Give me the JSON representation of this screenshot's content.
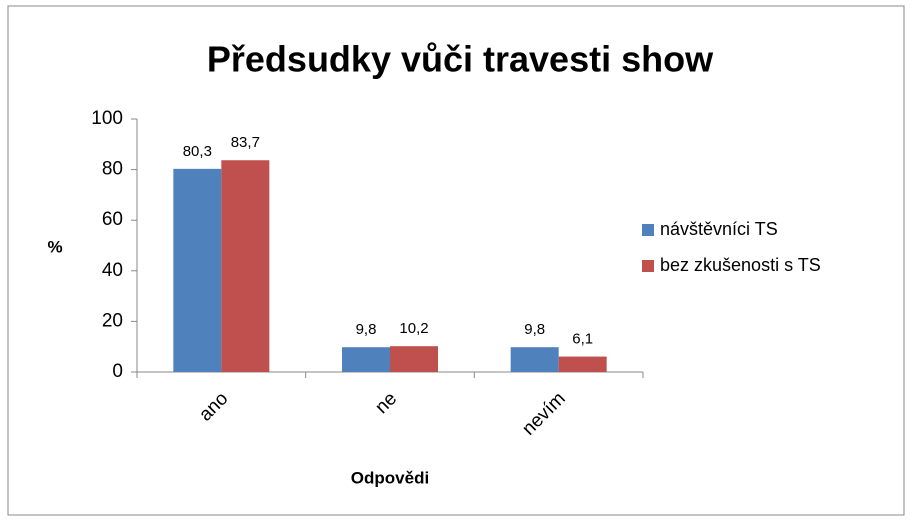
{
  "chart_data": {
    "type": "bar",
    "title": "Předsudky vůči travesti show",
    "x_label": "Odpovědi",
    "y_label": "%",
    "categories": [
      "ano",
      "ne",
      "nevím"
    ],
    "series": [
      {
        "name": "návštěvníci TS",
        "color": "#4f81bd",
        "values": [
          80.3,
          9.8,
          9.8
        ],
        "value_labels": [
          "80,3",
          "9,8",
          "9,8"
        ]
      },
      {
        "name": "bez zkušenosti s TS",
        "color": "#c0504d",
        "values": [
          83.7,
          10.2,
          6.1
        ],
        "value_labels": [
          "83,7",
          "10,2",
          "6,1"
        ]
      }
    ],
    "ylim": [
      0,
      100
    ],
    "yticks": [
      0,
      20,
      40,
      60,
      80,
      100
    ],
    "grid": false,
    "legend": "right"
  }
}
